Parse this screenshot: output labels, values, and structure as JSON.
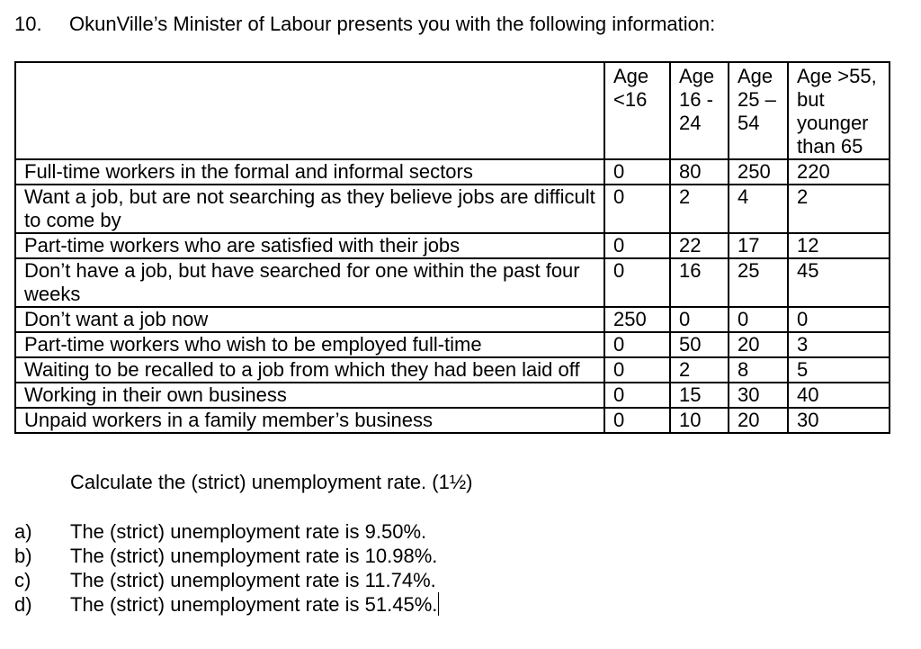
{
  "question": {
    "number": "10.",
    "text": "OkunVille’s Minister of Labour presents you with the following information:"
  },
  "table": {
    "headers": [
      "",
      "Age <16",
      "Age 16 - 24",
      "Age 25 – 54",
      "Age >55, but younger than 65"
    ],
    "rows": [
      {
        "label": "Full-time workers in the formal and informal sectors",
        "values": [
          "0",
          "80",
          "250",
          "220"
        ]
      },
      {
        "label": "Want a job, but are not searching as they believe jobs are difficult to come by",
        "values": [
          "0",
          "2",
          "4",
          "2"
        ]
      },
      {
        "label": "Part-time workers who are satisfied with their jobs",
        "values": [
          "0",
          "22",
          "17",
          "12"
        ]
      },
      {
        "label": "Don’t have a job, but have searched for one within the past four weeks",
        "values": [
          "0",
          "16",
          "25",
          "45"
        ]
      },
      {
        "label": "Don’t want a job now",
        "values": [
          "250",
          "0",
          "0",
          "0"
        ]
      },
      {
        "label": "Part-time workers who wish to be employed full-time",
        "values": [
          "0",
          "50",
          "20",
          "3"
        ]
      },
      {
        "label": "Waiting to be recalled to a job from which they had been laid off",
        "values": [
          "0",
          "2",
          "8",
          "5"
        ]
      },
      {
        "label": "Working in their own business",
        "values": [
          "0",
          "15",
          "30",
          "40"
        ]
      },
      {
        "label": "Unpaid workers in a family member’s business",
        "values": [
          "0",
          "10",
          "20",
          "30"
        ]
      }
    ]
  },
  "instruction": "Calculate the (strict) unemployment rate. (1½)",
  "options": [
    {
      "letter": "a)",
      "text": "The (strict) unemployment rate is 9.50%."
    },
    {
      "letter": "b)",
      "text": "The (strict) unemployment rate is 10.98%."
    },
    {
      "letter": "c)",
      "text": "The (strict) unemployment rate is 11.74%."
    },
    {
      "letter": "d)",
      "text": "The (strict) unemployment rate is 51.45%."
    }
  ]
}
